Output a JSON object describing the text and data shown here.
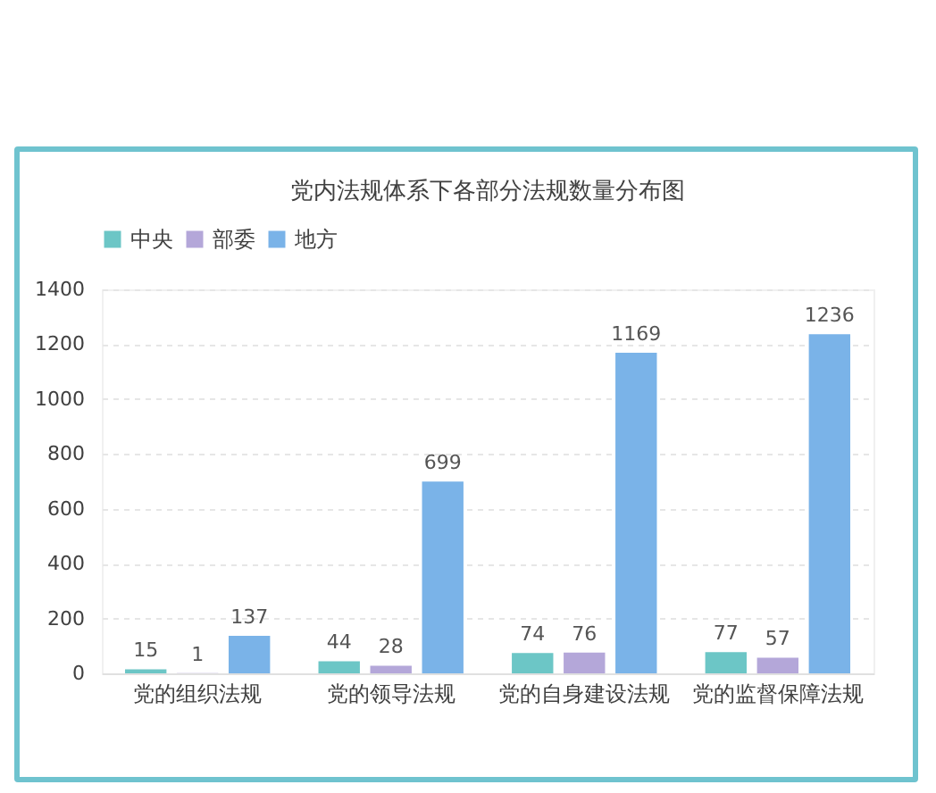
{
  "chart_data": {
    "type": "bar",
    "title": "党内法规体系下各部分法规数量分布图",
    "categories": [
      "党的组织法规",
      "党的领导法规",
      "党的自身建设法规",
      "党的监督保障法规"
    ],
    "series": [
      {
        "name": "中央",
        "color": "#6cc6c6",
        "values": [
          15,
          44,
          74,
          77
        ]
      },
      {
        "name": "部委",
        "color": "#b4a7d9",
        "values": [
          1,
          28,
          76,
          57
        ]
      },
      {
        "name": "地方",
        "color": "#7ab3e8",
        "values": [
          137,
          699,
          1169,
          1236
        ]
      }
    ],
    "ylim": [
      0,
      1400
    ],
    "yticks": [
      0,
      200,
      400,
      600,
      800,
      1000,
      1200,
      1400
    ],
    "grid": "y",
    "legend": "top left",
    "data_labels": true
  }
}
